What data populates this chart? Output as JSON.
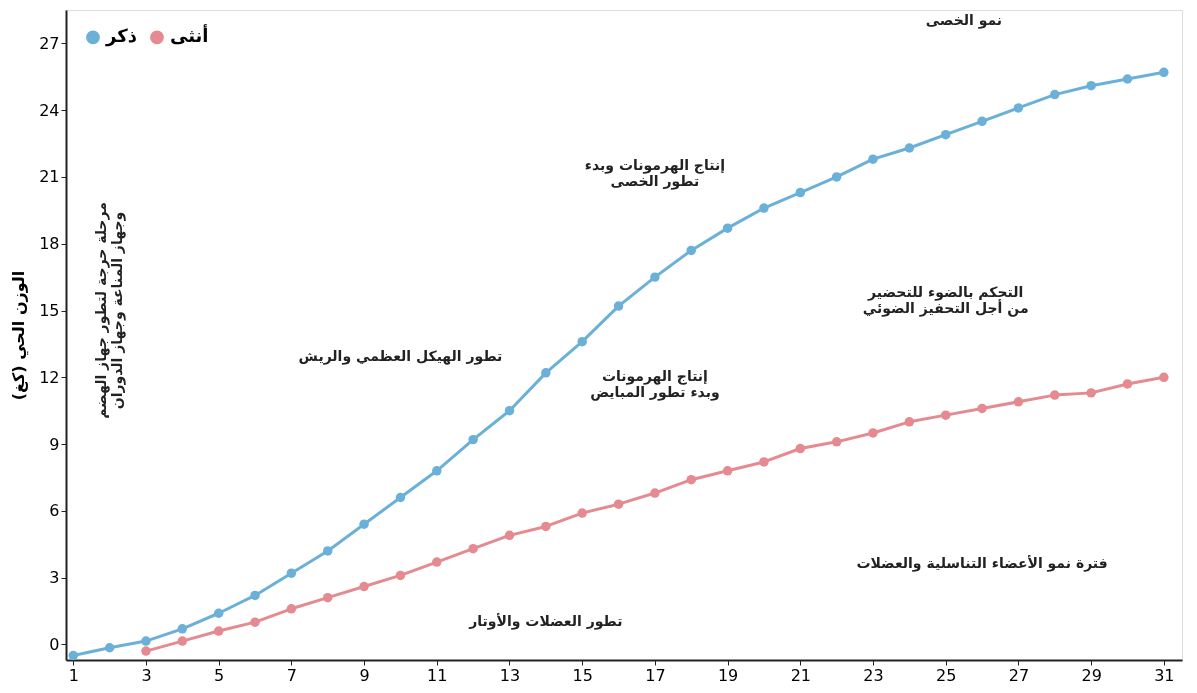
{
  "chart_data": {
    "type": "line",
    "ylabel": "الوزن الحي (كغ)",
    "x": [
      1,
      2,
      3,
      4,
      5,
      6,
      7,
      8,
      9,
      10,
      11,
      12,
      13,
      14,
      15,
      16,
      17,
      18,
      19,
      20,
      21,
      22,
      23,
      24,
      25,
      26,
      27,
      28,
      29,
      30,
      31
    ],
    "series": [
      {
        "name": "ذكر",
        "color": "#6ab0d8",
        "values": [
          -0.5,
          -0.15,
          0.15,
          0.7,
          1.4,
          2.2,
          3.2,
          4.2,
          5.4,
          6.6,
          7.8,
          9.2,
          10.5,
          12.2,
          13.6,
          15.2,
          16.5,
          17.7,
          18.7,
          19.6,
          20.3,
          21.0,
          21.8,
          22.3,
          22.9,
          23.5,
          24.1,
          24.7,
          25.1,
          25.4,
          25.7
        ]
      },
      {
        "name": "أنثى",
        "color": "#e48a90",
        "values": [
          null,
          null,
          -0.3,
          0.15,
          0.6,
          1.0,
          1.6,
          2.1,
          2.6,
          3.1,
          3.7,
          4.3,
          4.9,
          5.3,
          5.9,
          6.3,
          6.8,
          7.4,
          7.8,
          8.2,
          8.8,
          9.1,
          9.5,
          10.0,
          10.3,
          10.6,
          10.9,
          11.2,
          11.3,
          11.7,
          12.0
        ]
      }
    ],
    "xlim": [
      0.8,
      31.5
    ],
    "xticks": [
      1,
      3,
      5,
      7,
      9,
      11,
      13,
      15,
      17,
      19,
      21,
      23,
      25,
      27,
      29,
      31
    ],
    "ylim": [
      -0.7,
      28.5
    ],
    "yticks": [
      0,
      3,
      6,
      9,
      12,
      15,
      18,
      21,
      24,
      27
    ],
    "grid": false,
    "legend": "top left",
    "marker": "circle",
    "line_style": "solid",
    "annotations": [
      "مرحلة حرجة لتطور جهاز الهضم\nوجهاز المناعة وجهاز الدوران",
      "تطور الهيكل العظمي والريش",
      "تطور العضلات والأوتار",
      "إنتاج الهرمونات\nوبدء تطور المبايض",
      "إنتاج الهرمونات وبدء\nتطور الخصى",
      "نمو الخصى",
      "التحكم بالضوء للتحضير\nمن أجل التحفيز الضوئي",
      "فترة نمو الأعضاء التناسلية والعضلات"
    ]
  }
}
